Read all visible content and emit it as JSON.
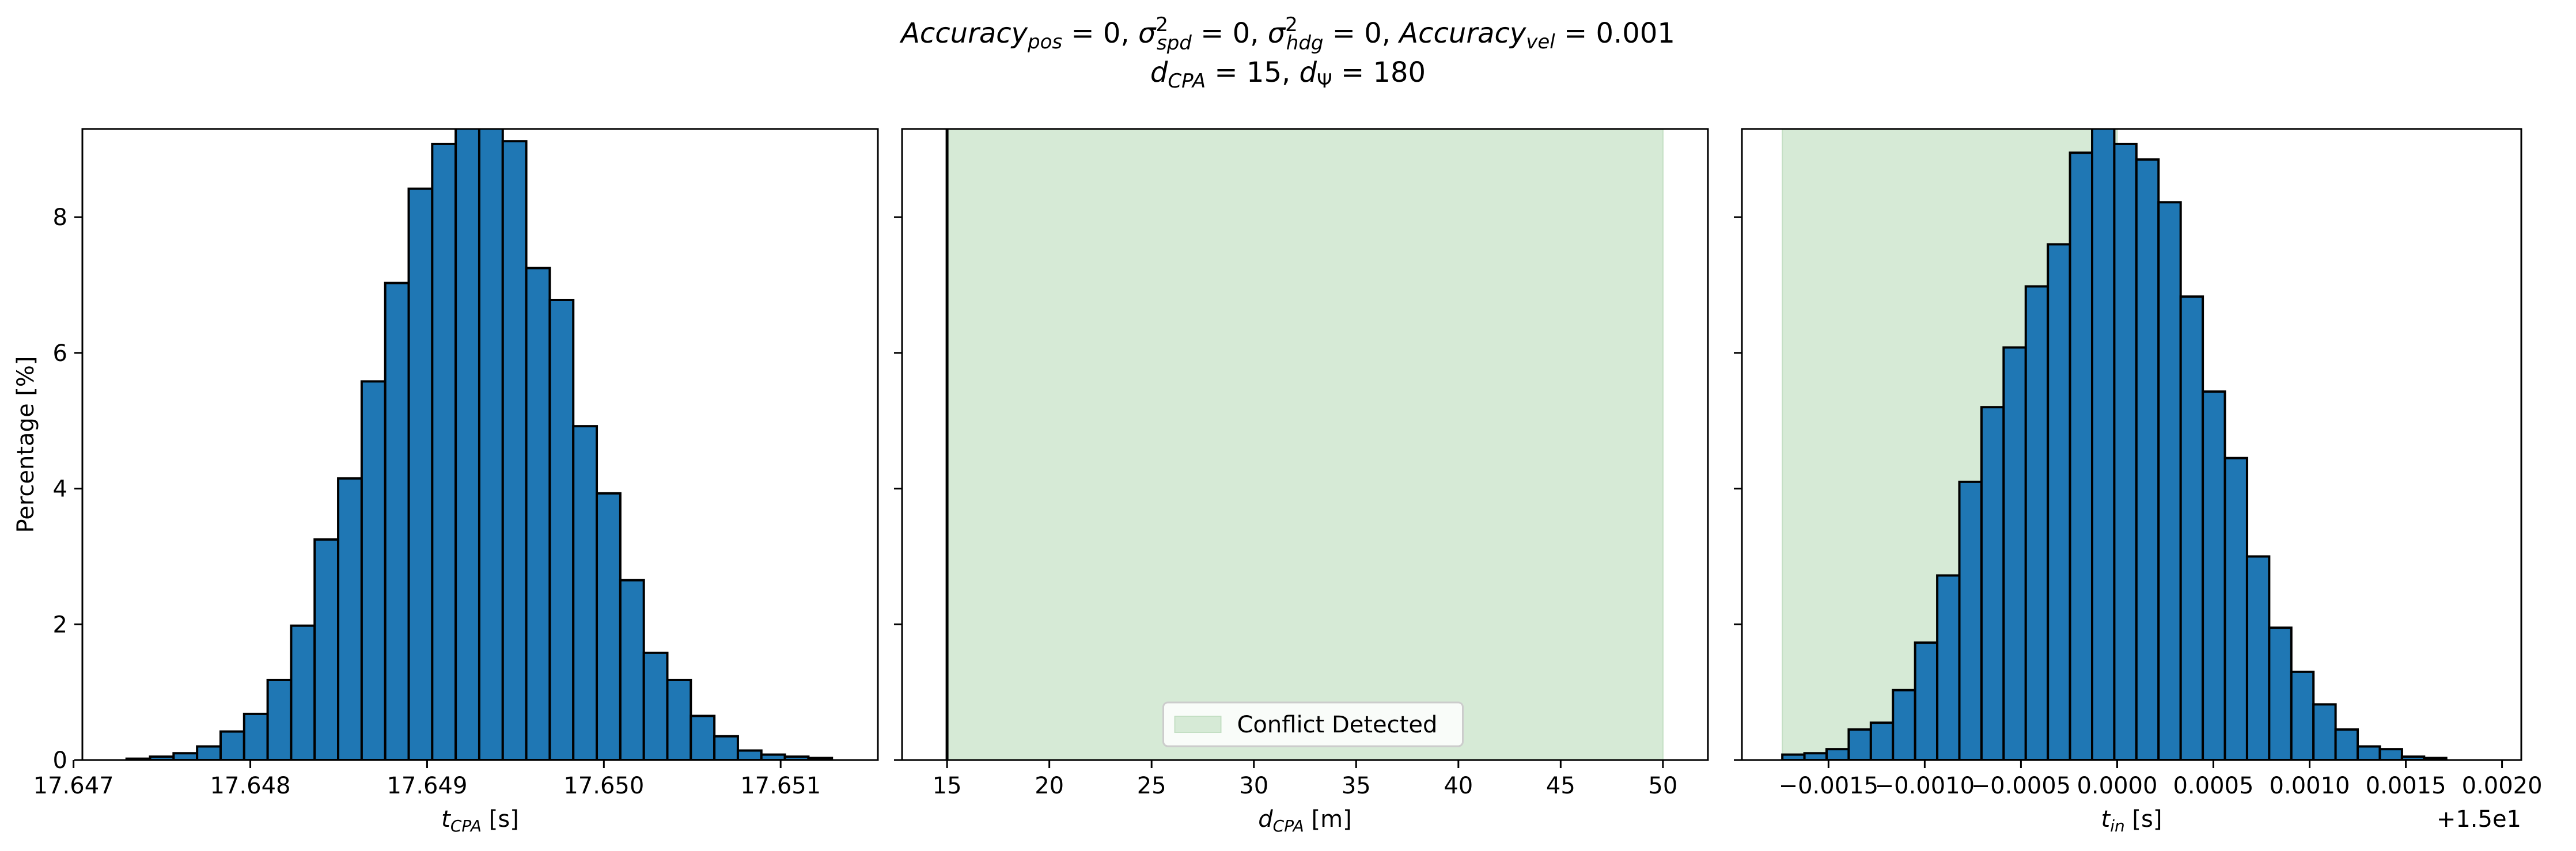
{
  "figure": {
    "title_line1": "Accuracy_pos = 0, σ²_spd = 0, σ²_hdg = 0, Accuracy_vel = 0.001",
    "title_line2": "d_CPA = 15, d_Ψ = 180"
  },
  "colors": {
    "bar_fill": "#1f77b4",
    "bar_edge": "#000000",
    "conflict_fill": "#d6ead6",
    "axes": "#000000"
  },
  "chart_data": [
    {
      "type": "bar",
      "ylabel": "Percentage [%]",
      "xlabel_main": "t",
      "xlabel_sub": "CPA",
      "xlabel_unit": " [s]",
      "xlim": [
        17.64705,
        17.65155
      ],
      "ylim": [
        0,
        9.3
      ],
      "xticks": [
        17.647,
        17.648,
        17.649,
        17.65,
        17.651
      ],
      "xtick_labels": [
        "17.647",
        "17.648",
        "17.649",
        "17.650",
        "17.651"
      ],
      "yticks": [
        0,
        2,
        4,
        6,
        8
      ],
      "ytick_labels": [
        "0",
        "2",
        "4",
        "6",
        "8"
      ],
      "bin_start": 17.6473,
      "bin_width": 0.000133,
      "values": [
        0.02,
        0.05,
        0.1,
        0.2,
        0.42,
        0.68,
        1.18,
        1.98,
        3.25,
        4.15,
        5.58,
        7.03,
        8.42,
        9.08,
        9.35,
        9.45,
        9.12,
        7.25,
        6.78,
        4.92,
        3.93,
        2.65,
        1.58,
        1.18,
        0.65,
        0.35,
        0.14,
        0.08,
        0.05,
        0.03
      ]
    },
    {
      "type": "bar",
      "xlabel_main": "d",
      "xlabel_sub": "CPA",
      "xlabel_unit": " [m]",
      "xlim": [
        12.8,
        52.2
      ],
      "ylim": [
        0,
        9.3
      ],
      "xticks": [
        15,
        20,
        25,
        30,
        35,
        40,
        45,
        50
      ],
      "xtick_labels": [
        "15",
        "20",
        "25",
        "30",
        "35",
        "40",
        "45",
        "50"
      ],
      "yticks": [
        0,
        2,
        4,
        6,
        8
      ],
      "conflict_region": [
        15,
        50
      ],
      "spike_x": 15,
      "spike_value": 9.3,
      "legend": {
        "label": "Conflict Detected",
        "placement": "lower-center"
      }
    },
    {
      "type": "bar",
      "xlabel_main": "t",
      "xlabel_sub": "in",
      "xlabel_unit": " [s]",
      "offset_label": "+1.5e1",
      "xlim": [
        -0.00195,
        0.0021
      ],
      "ylim": [
        0,
        9.3
      ],
      "xticks": [
        -0.0015,
        -0.001,
        -0.0005,
        0.0,
        0.0005,
        0.001,
        0.0015,
        0.002
      ],
      "xtick_labels": [
        "−0.0015",
        "−0.0010",
        "−0.0005",
        "0.0000",
        "0.0005",
        "0.0010",
        "0.0015",
        "0.0020"
      ],
      "yticks": [
        0,
        2,
        4,
        6,
        8
      ],
      "conflict_region": [
        -0.00174,
        0.0
      ],
      "bin_start": -0.00174,
      "bin_width": 0.000115,
      "values": [
        0.08,
        0.1,
        0.16,
        0.45,
        0.55,
        1.03,
        1.73,
        2.72,
        4.1,
        5.2,
        6.08,
        6.98,
        7.6,
        8.95,
        9.35,
        9.08,
        8.85,
        8.22,
        6.83,
        5.43,
        4.45,
        3.0,
        1.95,
        1.3,
        0.82,
        0.45,
        0.2,
        0.16,
        0.05,
        0.03
      ]
    }
  ]
}
